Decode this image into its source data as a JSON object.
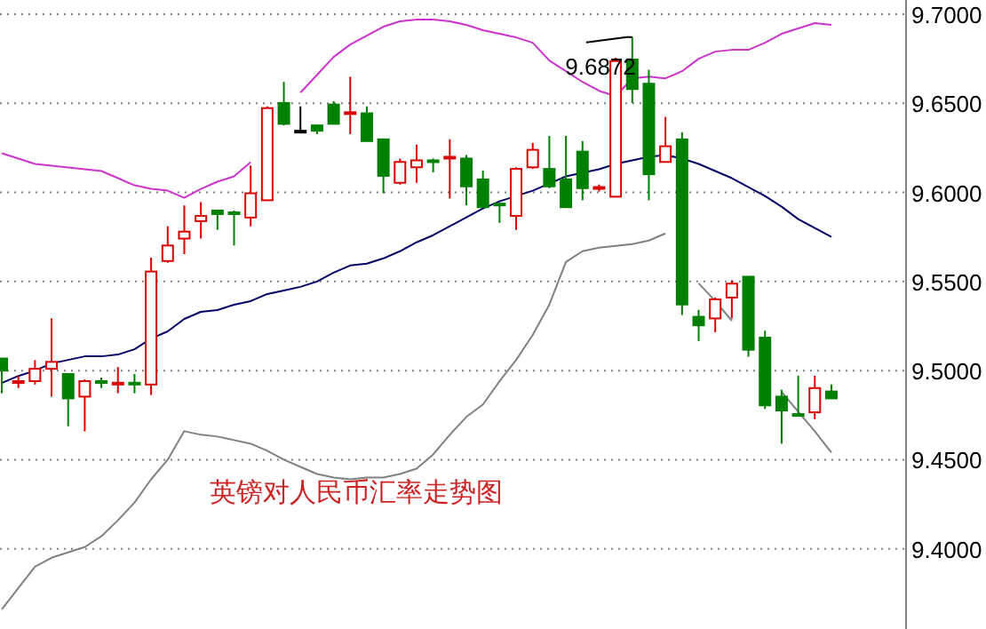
{
  "chart_data": {
    "type": "candlestick",
    "title": "英镑对人民币汇率走势图",
    "categories": [
      null,
      null,
      null,
      null,
      null,
      null,
      null,
      null,
      null,
      null,
      null,
      null,
      null,
      null,
      null,
      null,
      null,
      null,
      null,
      null,
      null,
      null,
      null,
      null,
      null,
      null,
      null,
      null,
      null,
      null,
      null,
      null,
      null,
      null,
      null,
      null,
      null,
      null,
      null,
      null,
      null,
      null,
      null,
      null,
      null,
      null,
      null,
      null,
      null,
      null,
      null
    ],
    "ohlc": [
      [
        9.5068,
        9.5068,
        9.4873,
        9.5
      ],
      [
        9.4932,
        9.4971,
        9.4902,
        9.4941
      ],
      [
        9.4941,
        9.5059,
        9.4922,
        9.501
      ],
      [
        9.501,
        9.5293,
        9.4854,
        9.5049
      ],
      [
        9.4981,
        9.4981,
        9.4688,
        9.4844
      ],
      [
        9.4854,
        9.4951,
        9.4659,
        9.4941
      ],
      [
        9.4941,
        9.4961,
        9.4902,
        9.4932
      ],
      [
        9.4922,
        9.502,
        9.4873,
        9.4932
      ],
      [
        9.4932,
        9.4981,
        9.4873,
        9.4922
      ],
      [
        9.4922,
        9.5634,
        9.4863,
        9.5556
      ],
      [
        9.5615,
        9.581,
        9.5605,
        9.5702
      ],
      [
        9.5741,
        9.5927,
        9.5654,
        9.578
      ],
      [
        9.5839,
        9.5946,
        9.5741,
        9.5868
      ],
      [
        9.5898,
        9.5898,
        9.579,
        9.5878
      ],
      [
        9.5888,
        9.5898,
        9.5702,
        9.588
      ],
      [
        9.5859,
        9.6151,
        9.581,
        9.5995
      ],
      [
        9.5956,
        9.6483,
        9.5956,
        9.6473
      ],
      [
        9.6502,
        9.662,
        9.6376,
        9.6385
      ],
      [
        9.6346,
        9.6483,
        9.6337,
        9.6346
      ],
      [
        9.6376,
        9.6376,
        9.6327,
        9.6346
      ],
      [
        9.6493,
        9.6512,
        9.6385,
        9.6385
      ],
      [
        9.6444,
        9.6649,
        9.6327,
        9.645
      ],
      [
        9.6444,
        9.6483,
        9.6288,
        9.6288
      ],
      [
        9.6298,
        9.6298,
        9.5995,
        9.6093
      ],
      [
        9.6054,
        9.619,
        9.6044,
        9.6171
      ],
      [
        9.6141,
        9.6268,
        9.6054,
        9.618
      ],
      [
        9.618,
        9.619,
        9.6112,
        9.6171
      ],
      [
        9.6195,
        9.6298,
        9.5966,
        9.62
      ],
      [
        9.619,
        9.621,
        9.5927,
        9.6034
      ],
      [
        9.6073,
        9.6122,
        9.5917,
        9.5917
      ],
      [
        9.5937,
        9.5937,
        9.5829,
        9.593
      ],
      [
        9.5868,
        9.6141,
        9.579,
        9.6132
      ],
      [
        9.6141,
        9.6278,
        9.6132,
        9.6239
      ],
      [
        9.6132,
        9.6317,
        9.6024,
        9.6034
      ],
      [
        9.6073,
        9.6317,
        9.5917,
        9.5917
      ],
      [
        9.6229,
        9.6288,
        9.5956,
        9.6024
      ],
      [
        9.6024,
        9.6044,
        9.6005,
        9.603
      ],
      [
        9.5976,
        9.6756,
        9.5976,
        9.6737
      ],
      [
        9.6746,
        9.6872,
        9.6502,
        9.658
      ],
      [
        9.661,
        9.6688,
        9.5956,
        9.6102
      ],
      [
        9.6171,
        9.6424,
        9.6171,
        9.6259
      ],
      [
        9.6298,
        9.6337,
        9.5312,
        9.5371
      ],
      [
        9.5302,
        9.5341,
        9.5166,
        9.5254
      ],
      [
        9.5293,
        9.541,
        9.5215,
        9.54
      ],
      [
        9.541,
        9.5507,
        9.5293,
        9.5488
      ],
      [
        9.5527,
        9.5527,
        9.5078,
        9.5117
      ],
      [
        9.5185,
        9.5224,
        9.4785,
        9.4805
      ],
      [
        9.4854,
        9.4893,
        9.459,
        9.4776
      ],
      [
        9.4756,
        9.4971,
        9.4746,
        9.475
      ],
      [
        9.4766,
        9.4971,
        9.4727,
        9.4902
      ],
      [
        9.4883,
        9.4922,
        9.4844,
        9.4844
      ]
    ],
    "series": [
      {
        "type": "line",
        "color": "#cc33cc",
        "values": [
          9.622,
          9.619,
          9.616,
          9.615,
          9.614,
          9.613,
          9.612,
          9.608,
          9.604,
          9.602,
          9.601,
          9.597,
          9.602,
          9.606,
          9.609,
          9.617,
          null,
          null,
          9.656,
          9.666,
          9.676,
          9.683,
          9.688,
          9.693,
          9.696,
          9.697,
          9.697,
          9.696,
          9.694,
          9.691,
          9.689,
          9.687,
          9.684,
          9.674,
          9.668,
          9.662,
          9.657,
          9.654,
          9.664,
          9.665,
          9.664,
          9.668,
          9.675,
          9.679,
          9.68,
          9.68,
          9.684,
          9.689,
          9.692,
          9.695,
          9.694
        ]
      },
      {
        "type": "line",
        "color": "#000066",
        "values": [
          9.493,
          9.497,
          9.5,
          9.504,
          9.506,
          9.508,
          9.508,
          9.509,
          9.512,
          9.518,
          9.522,
          9.529,
          9.533,
          9.534,
          9.537,
          9.539,
          9.543,
          9.545,
          9.547,
          9.55,
          9.555,
          9.559,
          9.56,
          9.563,
          9.567,
          9.572,
          9.576,
          9.581,
          9.586,
          9.591,
          9.595,
          9.598,
          9.601,
          9.605,
          9.609,
          9.611,
          9.613,
          9.616,
          9.618,
          9.62,
          9.621,
          9.619,
          9.616,
          9.612,
          9.608,
          9.603,
          9.598,
          9.592,
          9.585,
          9.58,
          9.575
        ]
      },
      {
        "type": "line",
        "color": "#808080",
        "values": [
          9.366,
          9.378,
          9.39,
          9.395,
          9.398,
          9.401,
          9.407,
          9.416,
          9.426,
          9.439,
          9.45,
          9.466,
          9.464,
          9.463,
          9.461,
          9.459,
          9.455,
          9.45,
          9.446,
          9.442,
          9.44,
          9.439,
          9.44,
          9.44,
          9.442,
          9.445,
          9.453,
          9.464,
          9.474,
          9.481,
          9.494,
          9.506,
          9.52,
          9.537,
          9.561,
          9.567,
          9.569,
          9.57,
          9.571,
          9.573,
          9.577,
          null,
          9.549,
          9.539,
          9.528,
          null,
          null,
          9.488,
          9.477,
          9.466,
          9.454
        ]
      }
    ],
    "ylim": [
      9.355,
      9.7
    ],
    "yticks": [
      {
        "value": 9.4,
        "label": "9.4000"
      },
      {
        "value": 9.45,
        "label": "9.4500"
      },
      {
        "value": 9.5,
        "label": "9.5000"
      },
      {
        "value": 9.55,
        "label": "9.5500"
      },
      {
        "value": 9.6,
        "label": "9.6000"
      },
      {
        "value": 9.65,
        "label": "9.6500"
      },
      {
        "value": 9.7,
        "label": "9.7000"
      }
    ],
    "grid": "y",
    "tick_labels": "y",
    "annotations": [
      "9.6872"
    ]
  }
}
